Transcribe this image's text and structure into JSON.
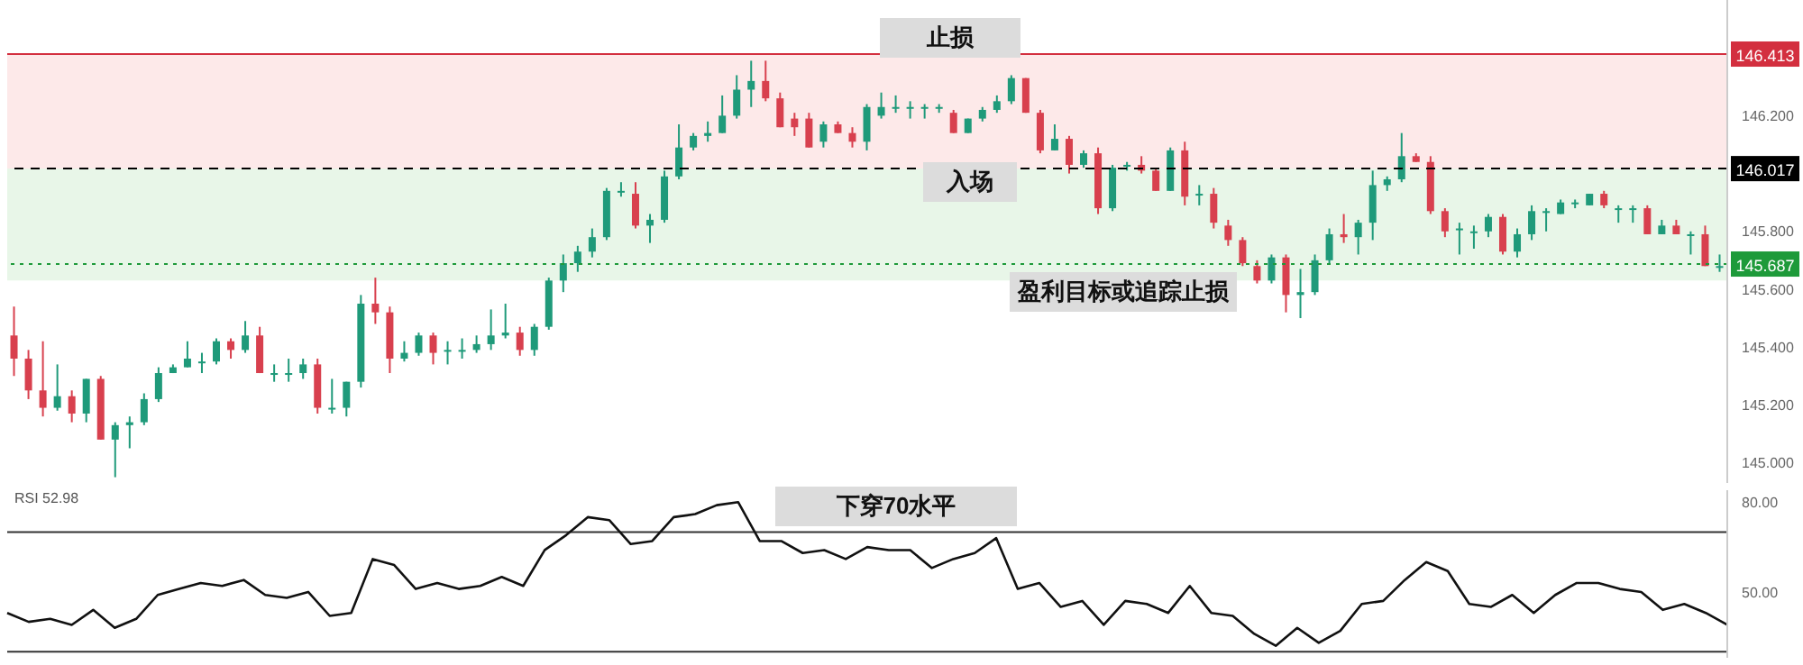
{
  "chart_data": [
    {
      "type": "candlestick",
      "categories": [
        null,
        null,
        null,
        null,
        null,
        null,
        null,
        null,
        null,
        null,
        null,
        null,
        null,
        null,
        null,
        null,
        null,
        null,
        null,
        null,
        null,
        null,
        null,
        null,
        null,
        null,
        null,
        null,
        null,
        null,
        null,
        null,
        null,
        null,
        null,
        null,
        null,
        null,
        null,
        null,
        null,
        null,
        null,
        null,
        null,
        null,
        null,
        null,
        null,
        null,
        null,
        null,
        null,
        null,
        null,
        null,
        null,
        null,
        null,
        null,
        null,
        null,
        null,
        null,
        null,
        null,
        null,
        null,
        null,
        null,
        null,
        null,
        null,
        null,
        null,
        null,
        null,
        null,
        null,
        null,
        null,
        null,
        null,
        null,
        null,
        null,
        null,
        null,
        null,
        null,
        null,
        null,
        null,
        null,
        null,
        null,
        null,
        null,
        null,
        null,
        null,
        null,
        null,
        null,
        null,
        null,
        null,
        null,
        null,
        null,
        null,
        null,
        null,
        null,
        null,
        null,
        null,
        null,
        null
      ],
      "ohlc": [
        [
          145.44,
          145.54,
          145.3,
          145.36
        ],
        [
          145.36,
          145.39,
          145.22,
          145.25
        ],
        [
          145.25,
          145.42,
          145.16,
          145.19
        ],
        [
          145.19,
          145.34,
          145.18,
          145.23
        ],
        [
          145.23,
          145.25,
          145.14,
          145.17
        ],
        [
          145.17,
          145.29,
          145.14,
          145.29
        ],
        [
          145.29,
          145.3,
          145.08,
          145.08
        ],
        [
          145.08,
          145.14,
          144.95,
          145.13
        ],
        [
          145.13,
          145.16,
          145.05,
          145.14
        ],
        [
          145.14,
          145.24,
          145.13,
          145.22
        ],
        [
          145.22,
          145.33,
          145.21,
          145.31
        ],
        [
          145.31,
          145.34,
          145.31,
          145.33
        ],
        [
          145.33,
          145.42,
          145.33,
          145.36
        ],
        [
          145.35,
          145.38,
          145.31,
          145.35
        ],
        [
          145.35,
          145.43,
          145.34,
          145.42
        ],
        [
          145.42,
          145.43,
          145.36,
          145.39
        ],
        [
          145.39,
          145.49,
          145.38,
          145.44
        ],
        [
          145.44,
          145.47,
          145.31,
          145.31
        ],
        [
          145.31,
          145.34,
          145.28,
          145.31
        ],
        [
          145.31,
          145.36,
          145.28,
          145.31
        ],
        [
          145.31,
          145.36,
          145.29,
          145.34
        ],
        [
          145.34,
          145.36,
          145.17,
          145.19
        ],
        [
          145.19,
          145.29,
          145.17,
          145.19
        ],
        [
          145.19,
          145.28,
          145.16,
          145.28
        ],
        [
          145.28,
          145.58,
          145.26,
          145.55
        ],
        [
          145.55,
          145.64,
          145.48,
          145.52
        ],
        [
          145.52,
          145.54,
          145.31,
          145.36
        ],
        [
          145.36,
          145.42,
          145.35,
          145.38
        ],
        [
          145.38,
          145.45,
          145.37,
          145.44
        ],
        [
          145.44,
          145.45,
          145.34,
          145.38
        ],
        [
          145.39,
          145.42,
          145.34,
          145.39
        ],
        [
          145.39,
          145.43,
          145.36,
          145.39
        ],
        [
          145.39,
          145.44,
          145.38,
          145.41
        ],
        [
          145.41,
          145.53,
          145.39,
          145.44
        ],
        [
          145.44,
          145.55,
          145.43,
          145.45
        ],
        [
          145.45,
          145.47,
          145.37,
          145.39
        ],
        [
          145.39,
          145.48,
          145.37,
          145.47
        ],
        [
          145.47,
          145.64,
          145.46,
          145.63
        ],
        [
          145.63,
          145.72,
          145.59,
          145.69
        ],
        [
          145.69,
          145.75,
          145.66,
          145.73
        ],
        [
          145.73,
          145.81,
          145.71,
          145.78
        ],
        [
          145.78,
          145.95,
          145.77,
          145.94
        ],
        [
          145.94,
          145.97,
          145.92,
          145.94
        ],
        [
          145.93,
          145.97,
          145.81,
          145.82
        ],
        [
          145.82,
          145.86,
          145.76,
          145.84
        ],
        [
          145.84,
          146.01,
          145.83,
          145.99
        ],
        [
          145.99,
          146.17,
          145.98,
          146.09
        ],
        [
          146.09,
          146.14,
          146.08,
          146.13
        ],
        [
          146.13,
          146.18,
          146.11,
          146.14
        ],
        [
          146.14,
          146.27,
          146.14,
          146.2
        ],
        [
          146.2,
          146.34,
          146.19,
          146.29
        ],
        [
          146.29,
          146.39,
          146.23,
          146.32
        ],
        [
          146.32,
          146.39,
          146.25,
          146.26
        ],
        [
          146.26,
          146.28,
          146.16,
          146.16
        ],
        [
          146.19,
          146.21,
          146.13,
          146.16
        ],
        [
          146.19,
          146.21,
          146.09,
          146.09
        ],
        [
          146.11,
          146.18,
          146.09,
          146.17
        ],
        [
          146.17,
          146.18,
          146.14,
          146.14
        ],
        [
          146.14,
          146.16,
          146.09,
          146.11
        ],
        [
          146.11,
          146.24,
          146.08,
          146.23
        ],
        [
          146.2,
          146.28,
          146.19,
          146.23
        ],
        [
          146.23,
          146.27,
          146.21,
          146.23
        ],
        [
          146.23,
          146.25,
          146.19,
          146.23
        ],
        [
          146.23,
          146.24,
          146.19,
          146.23
        ],
        [
          146.23,
          146.24,
          146.21,
          146.23
        ],
        [
          146.21,
          146.22,
          146.14,
          146.14
        ],
        [
          146.14,
          146.19,
          146.14,
          146.19
        ],
        [
          146.19,
          146.23,
          146.18,
          146.22
        ],
        [
          146.22,
          146.27,
          146.21,
          146.25
        ],
        [
          146.25,
          146.34,
          146.24,
          146.33
        ],
        [
          146.33,
          146.33,
          146.21,
          146.21
        ],
        [
          146.21,
          146.22,
          146.07,
          146.08
        ],
        [
          146.08,
          146.17,
          146.08,
          146.12
        ],
        [
          146.12,
          146.13,
          146.0,
          146.03
        ],
        [
          146.03,
          146.08,
          146.02,
          146.07
        ],
        [
          146.07,
          146.09,
          145.86,
          145.88
        ],
        [
          145.88,
          146.03,
          145.87,
          146.02
        ],
        [
          146.03,
          146.04,
          146.01,
          146.03
        ],
        [
          146.03,
          146.06,
          146.0,
          146.01
        ],
        [
          146.01,
          146.02,
          145.94,
          145.94
        ],
        [
          145.94,
          146.09,
          145.94,
          146.08
        ],
        [
          146.08,
          146.11,
          145.89,
          145.92
        ],
        [
          145.93,
          145.96,
          145.89,
          145.93
        ],
        [
          145.93,
          145.95,
          145.81,
          145.83
        ],
        [
          145.82,
          145.84,
          145.75,
          145.77
        ],
        [
          145.77,
          145.78,
          145.68,
          145.69
        ],
        [
          145.68,
          145.7,
          145.62,
          145.63
        ],
        [
          145.63,
          145.72,
          145.62,
          145.71
        ],
        [
          145.71,
          145.72,
          145.52,
          145.58
        ],
        [
          145.58,
          145.67,
          145.5,
          145.59
        ],
        [
          145.59,
          145.72,
          145.58,
          145.7
        ],
        [
          145.7,
          145.81,
          145.69,
          145.79
        ],
        [
          145.79,
          145.86,
          145.76,
          145.78
        ],
        [
          145.78,
          145.84,
          145.72,
          145.83
        ],
        [
          145.83,
          146.01,
          145.77,
          145.96
        ],
        [
          145.96,
          145.99,
          145.94,
          145.98
        ],
        [
          145.98,
          146.14,
          145.97,
          146.06
        ],
        [
          146.06,
          146.07,
          146.04,
          146.04
        ],
        [
          146.04,
          146.06,
          145.86,
          145.87
        ],
        [
          145.87,
          145.88,
          145.78,
          145.8
        ],
        [
          145.81,
          145.83,
          145.72,
          145.81
        ],
        [
          145.8,
          145.82,
          145.74,
          145.8
        ],
        [
          145.8,
          145.86,
          145.78,
          145.85
        ],
        [
          145.85,
          145.86,
          145.72,
          145.73
        ],
        [
          145.73,
          145.81,
          145.71,
          145.79
        ],
        [
          145.79,
          145.89,
          145.77,
          145.87
        ],
        [
          145.87,
          145.88,
          145.8,
          145.87
        ],
        [
          145.86,
          145.91,
          145.86,
          145.9
        ],
        [
          145.9,
          145.91,
          145.88,
          145.9
        ],
        [
          145.89,
          145.93,
          145.89,
          145.93
        ],
        [
          145.93,
          145.94,
          145.88,
          145.89
        ],
        [
          145.88,
          145.89,
          145.83,
          145.88
        ],
        [
          145.88,
          145.89,
          145.83,
          145.88
        ],
        [
          145.88,
          145.89,
          145.79,
          145.79
        ],
        [
          145.79,
          145.84,
          145.79,
          145.82
        ],
        [
          145.82,
          145.84,
          145.79,
          145.79
        ],
        [
          145.79,
          145.8,
          145.72,
          145.79
        ],
        [
          145.79,
          145.82,
          145.68,
          145.68
        ],
        [
          145.68,
          145.72,
          145.66,
          145.68
        ]
      ],
      "colors": [
        "#d8404e",
        "#d8404e",
        "#d8404e",
        "#1f9a7a",
        "#d8404e",
        "#1f9a7a",
        "#d8404e",
        "#1f9a7a",
        "#1f9a7a",
        "#1f9a7a",
        "#1f9a7a",
        "#1f9a7a",
        "#1f9a7a",
        "#1f9a7a",
        "#1f9a7a",
        "#d8404e",
        "#1f9a7a",
        "#d8404e",
        "#1f9a7a",
        "#1f9a7a",
        "#1f9a7a",
        "#d8404e",
        "#1f9a7a",
        "#1f9a7a",
        "#1f9a7a",
        "#d8404e",
        "#d8404e",
        "#1f9a7a",
        "#1f9a7a",
        "#d8404e",
        "#1f9a7a",
        "#1f9a7a",
        "#1f9a7a",
        "#1f9a7a",
        "#1f9a7a",
        "#d8404e",
        "#1f9a7a",
        "#1f9a7a",
        "#1f9a7a",
        "#1f9a7a",
        "#1f9a7a",
        "#1f9a7a",
        "#1f9a7a",
        "#d8404e",
        "#1f9a7a",
        "#1f9a7a",
        "#1f9a7a",
        "#1f9a7a",
        "#1f9a7a",
        "#1f9a7a",
        "#1f9a7a",
        "#1f9a7a",
        "#d8404e",
        "#d8404e",
        "#d8404e",
        "#d8404e",
        "#1f9a7a",
        "#d8404e",
        "#d8404e",
        "#1f9a7a",
        "#1f9a7a",
        "#1f9a7a",
        "#1f9a7a",
        "#1f9a7a",
        "#1f9a7a",
        "#d8404e",
        "#1f9a7a",
        "#1f9a7a",
        "#1f9a7a",
        "#1f9a7a",
        "#d8404e",
        "#d8404e",
        "#1f9a7a",
        "#d8404e",
        "#1f9a7a",
        "#d8404e",
        "#1f9a7a",
        "#1f9a7a",
        "#d8404e",
        "#d8404e",
        "#1f9a7a",
        "#d8404e",
        "#1f9a7a",
        "#d8404e",
        "#d8404e",
        "#d8404e",
        "#d8404e",
        "#1f9a7a",
        "#d8404e",
        "#1f9a7a",
        "#1f9a7a",
        "#1f9a7a",
        "#d8404e",
        "#1f9a7a",
        "#1f9a7a",
        "#1f9a7a",
        "#1f9a7a",
        "#d8404e",
        "#d8404e",
        "#d8404e",
        "#1f9a7a",
        "#1f9a7a",
        "#1f9a7a",
        "#d8404e",
        "#1f9a7a",
        "#1f9a7a",
        "#1f9a7a",
        "#1f9a7a",
        "#1f9a7a",
        "#1f9a7a",
        "#d8404e",
        "#1f9a7a",
        "#1f9a7a",
        "#d8404e",
        "#1f9a7a",
        "#d8404e",
        "#1f9a7a",
        "#d8404e",
        "#1f9a7a"
      ],
      "ylim": [
        144.93,
        146.6
      ],
      "yticks": [
        {
          "value": 145.0,
          "label": "145.000"
        },
        {
          "value": 145.2,
          "label": "145.200"
        },
        {
          "value": 145.4,
          "label": "145.400"
        },
        {
          "value": 145.6,
          "label": "145.600"
        },
        {
          "value": 145.8,
          "label": "145.800"
        },
        {
          "value": 146.2,
          "label": "146.200"
        }
      ],
      "tick_labels": "y",
      "ref_lines": [
        {
          "axis": "y",
          "value": 146.413,
          "label": "146.413",
          "color": "#d32f3f",
          "line_style": "solid"
        },
        {
          "axis": "y",
          "value": 146.017,
          "label": "146.017",
          "color": "#000000",
          "line_style": "dashed"
        },
        {
          "axis": "y",
          "value": 145.687,
          "label": "145.687",
          "color": "#1e9a3a",
          "line_style": "dotted"
        }
      ],
      "bands": [
        {
          "axis": "y",
          "from": 146.017,
          "to": 146.413,
          "color": "#fde3e3"
        },
        {
          "axis": "y",
          "from": 145.63,
          "to": 146.017,
          "color": "#e2f4e2"
        }
      ],
      "annotations": [
        "止损",
        "入场",
        "盈利目标或追踪止损"
      ]
    },
    {
      "type": "line",
      "categories": [
        null,
        null,
        null,
        null,
        null,
        null,
        null,
        null,
        null,
        null,
        null,
        null,
        null,
        null,
        null,
        null,
        null,
        null,
        null,
        null,
        null,
        null,
        null,
        null,
        null,
        null,
        null,
        null,
        null,
        null,
        null,
        null,
        null,
        null,
        null,
        null,
        null,
        null,
        null,
        null,
        null,
        null,
        null,
        null,
        null,
        null,
        null,
        null,
        null,
        null,
        null,
        null,
        null,
        null,
        null,
        null,
        null,
        null,
        null,
        null,
        null,
        null,
        null,
        null,
        null,
        null,
        null,
        null,
        null,
        null,
        null,
        null,
        null,
        null,
        null,
        null,
        null,
        null,
        null,
        null,
        null
      ],
      "series": [
        {
          "color": "#111111",
          "values": [
            43,
            40,
            41,
            39,
            44,
            38,
            41,
            49,
            51,
            53,
            52,
            54,
            49,
            48,
            50,
            42,
            43,
            61,
            59,
            51,
            53,
            51,
            52,
            55,
            52,
            64,
            69,
            75,
            74,
            66,
            67,
            75,
            76,
            79,
            80,
            67,
            67,
            63,
            64,
            61,
            65,
            64,
            64,
            58,
            61,
            63,
            68,
            51,
            53,
            45,
            47,
            39,
            47,
            46,
            43,
            52,
            43,
            42,
            36,
            32,
            38,
            33,
            37,
            46,
            47,
            54,
            60,
            57,
            46,
            45,
            49,
            43,
            49,
            53,
            53,
            51,
            50,
            44,
            46,
            43,
            39
          ]
        }
      ],
      "marker": "none",
      "line_style": "solid",
      "ylim": [
        28,
        84
      ],
      "yticks": [
        {
          "value": 80,
          "label": "80.00"
        },
        {
          "value": 50,
          "label": "50.00"
        }
      ],
      "tick_labels": "y",
      "ref_lines": [
        {
          "axis": "y",
          "value": 70,
          "color": "#333333"
        },
        {
          "axis": "y",
          "value": 30,
          "color": "#333333"
        }
      ],
      "annotations": [
        "RSI 52.98",
        "下穿70水平"
      ]
    }
  ]
}
